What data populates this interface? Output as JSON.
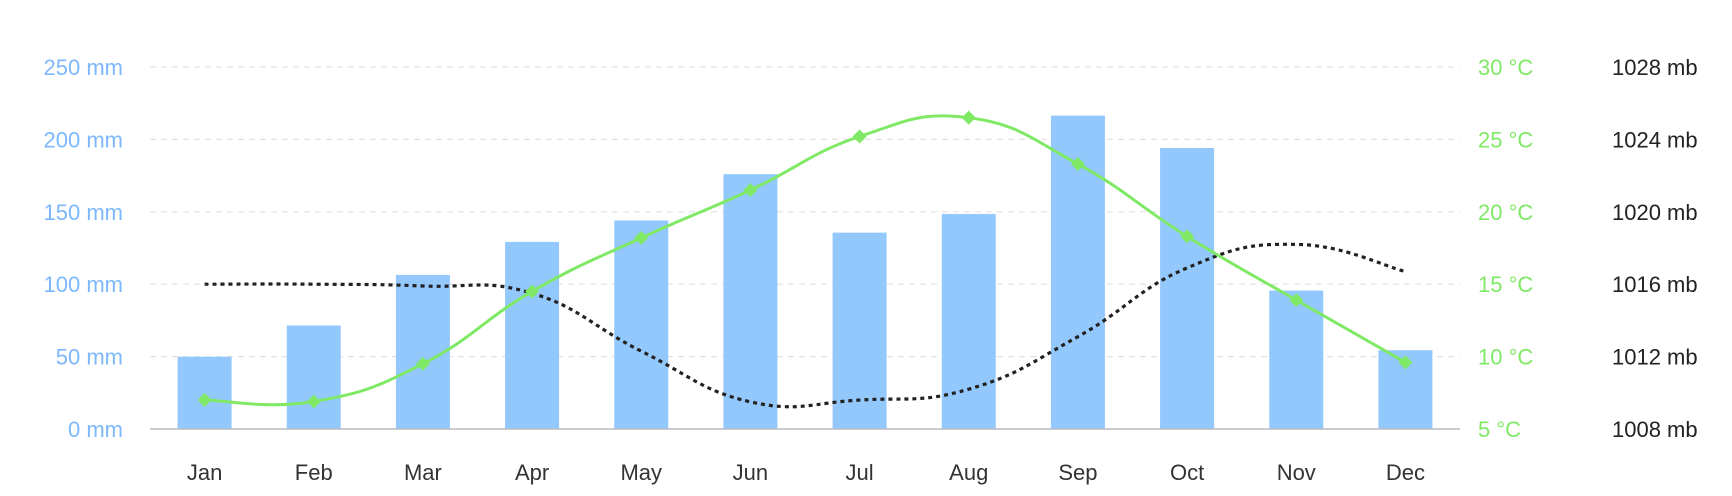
{
  "chart_data": {
    "type": "bar",
    "categories": [
      "Jan",
      "Feb",
      "Mar",
      "Apr",
      "May",
      "Jun",
      "Jul",
      "Aug",
      "Sep",
      "Oct",
      "Nov",
      "Dec"
    ],
    "series": [
      {
        "name": "",
        "kind": "bar",
        "axis": "left",
        "color": "#93c8fd",
        "values": [
          49.9,
          71.5,
          106.4,
          129.2,
          144.0,
          176.0,
          135.6,
          148.5,
          216.4,
          194.1,
          95.6,
          54.4
        ]
      },
      {
        "name": "",
        "kind": "spline",
        "axis": "right-1",
        "color": "#7fe865",
        "values": [
          7.0,
          6.9,
          9.5,
          14.5,
          18.2,
          21.5,
          25.2,
          26.5,
          23.3,
          18.3,
          13.9,
          9.6
        ]
      },
      {
        "name": "",
        "kind": "spline",
        "axis": "right-2",
        "color": "#222222",
        "dash": "dotted",
        "values": [
          1016,
          1016,
          1015.9,
          1015.5,
          1012.3,
          1009.5,
          1009.6,
          1010.2,
          1013.1,
          1016.9,
          1018.2,
          1016.7
        ]
      }
    ],
    "axes": {
      "left": {
        "ticks": [
          "0 mm",
          "50 mm",
          "100 mm",
          "150 mm",
          "200 mm",
          "250 mm"
        ],
        "min": 0,
        "max": 250,
        "color": "#7cb8fb"
      },
      "right_1": {
        "ticks": [
          "5 °C",
          "10 °C",
          "15 °C",
          "20 °C",
          "25 °C",
          "30 °C"
        ],
        "min": 5,
        "max": 30,
        "color": "#7fe865"
      },
      "right_2": {
        "ticks": [
          "1008 mb",
          "1012 mb",
          "1016 mb",
          "1020 mb",
          "1024 mb",
          "1028 mb"
        ],
        "min": 1008,
        "max": 1028,
        "color": "#222222"
      }
    },
    "grid": true,
    "legend": "none"
  }
}
